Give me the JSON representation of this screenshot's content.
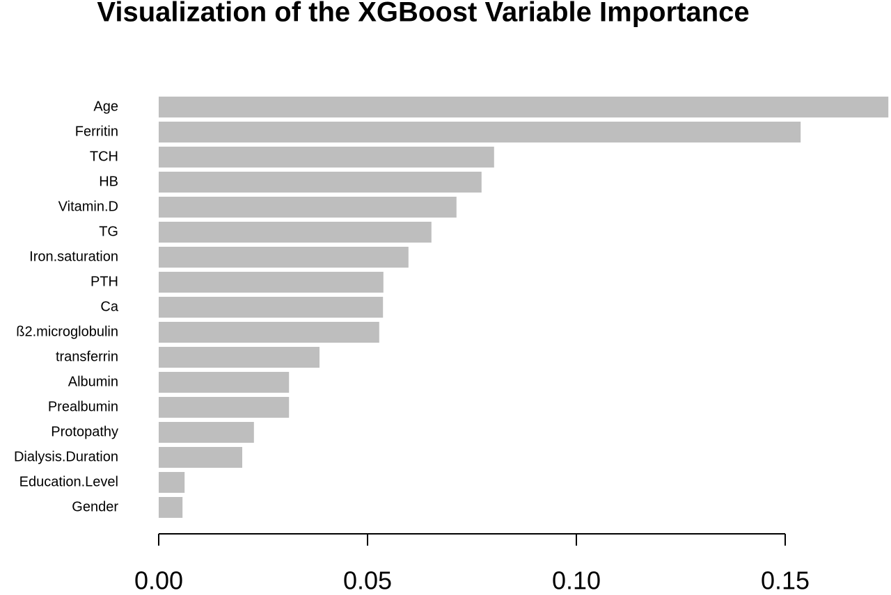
{
  "chart_data": {
    "type": "bar",
    "orientation": "horizontal",
    "title": "Visualization of the XGBoost Variable Importance",
    "categories": [
      "Age",
      "Ferritin",
      "TCH",
      "HB",
      "Vitamin.D",
      "TG",
      "Iron.saturation",
      "PTH",
      "Ca",
      "ß2.microglobulin",
      "transferrin",
      "Albumin",
      "Prealbumin",
      "Protopathy",
      "Dialysis.Duration",
      "Education.Level",
      "Gender"
    ],
    "values": [
      0.1747,
      0.1537,
      0.0803,
      0.0773,
      0.0713,
      0.0653,
      0.0598,
      0.0538,
      0.0537,
      0.0528,
      0.0385,
      0.0312,
      0.0312,
      0.0228,
      0.02,
      0.0062,
      0.0057
    ],
    "color": "#bebebe",
    "xlim": [
      0,
      0.175
    ],
    "xticks": [
      {
        "value": 0,
        "label": "0.00"
      },
      {
        "value": 0.05,
        "label": "0.05"
      },
      {
        "value": 0.1,
        "label": "0.10"
      },
      {
        "value": 0.15,
        "label": "0.15"
      }
    ]
  }
}
